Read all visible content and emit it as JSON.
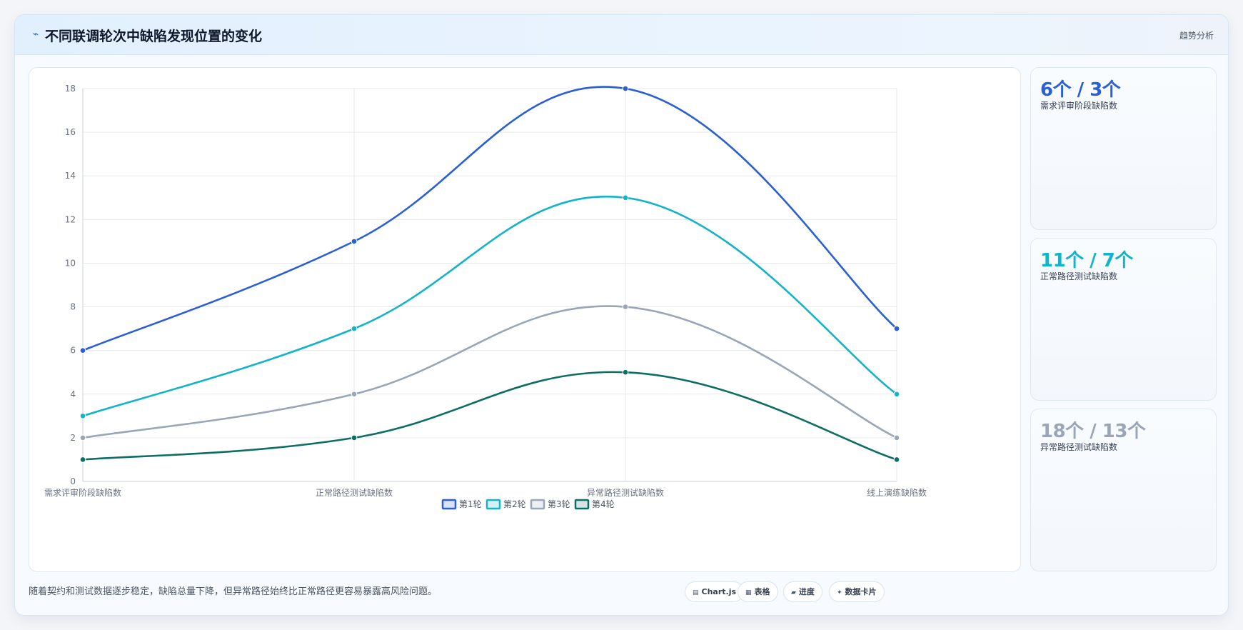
{
  "header": {
    "icon": "trend-line-icon",
    "title": "不同联调轮次中缺陷发现位置的变化",
    "tag": "趋势分析"
  },
  "chart_data": {
    "type": "line",
    "categories": [
      "需求评审阶段缺陷数",
      "正常路径测试缺陷数",
      "异常路径测试缺陷数",
      "线上演练缺陷数"
    ],
    "series": [
      {
        "name": "第1轮",
        "values": [
          6,
          11,
          18,
          7
        ],
        "color": "#2b5fd6"
      },
      {
        "name": "第2轮",
        "values": [
          3,
          7,
          13,
          4
        ],
        "color": "#13b3c9"
      },
      {
        "name": "第3轮",
        "values": [
          2,
          4,
          8,
          2
        ],
        "color": "#9aa6b8"
      },
      {
        "name": "第4轮",
        "values": [
          1,
          2,
          5,
          1
        ],
        "color": "#0e6e63"
      }
    ],
    "yticks": [
      "0",
      "2",
      "4",
      "6",
      "8",
      "10",
      "12",
      "14",
      "16",
      "18"
    ],
    "ylim": [
      0,
      18
    ],
    "grid": true,
    "legend": "bottom-center"
  },
  "stats": [
    {
      "value": "6个 / 3个",
      "label": "需求评审阶段缺陷数",
      "color": "#2b5fd6"
    },
    {
      "value": "11个 / 7个",
      "label": "正常路径测试缺陷数",
      "color": "#13b3c9"
    },
    {
      "value": "18个 / 13个",
      "label": "异常路径测试缺陷数",
      "color": "#9aa6b8"
    }
  ],
  "footer": {
    "note": "随着契约和测试数据逐步稳定，缺陷总量下降，但异常路径始终比正常路径更容易暴露高风险问题。",
    "pills": [
      {
        "icon": "chart-icon",
        "glyph": "▤",
        "label": "Chart.js"
      },
      {
        "icon": "table-icon",
        "glyph": "▦",
        "label": "表格"
      },
      {
        "icon": "progress-icon",
        "glyph": "▰",
        "label": "进度"
      },
      {
        "icon": "sparkle-icon",
        "glyph": "✦",
        "label": "数据卡片"
      }
    ]
  }
}
